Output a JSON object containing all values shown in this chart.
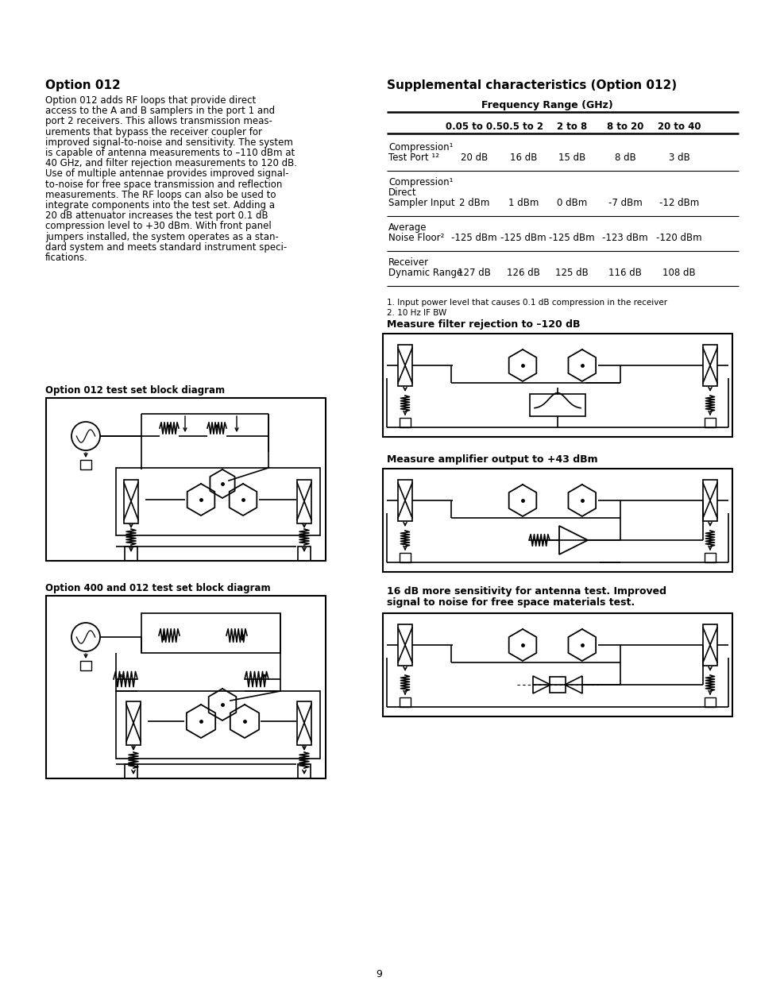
{
  "bg_color": "#ffffff",
  "page_number": "9",
  "left_title": "Option 012",
  "left_body_lines": [
    "Option 012 adds RF loops that provide direct",
    "access to the A and B samplers in the port 1 and",
    "port 2 receivers. This allows transmission meas-",
    "urements that bypass the receiver coupler for",
    "improved signal-to-noise and sensitivity. The system",
    "is capable of antenna measurements to –110 dBm at",
    "40 GHz, and filter rejection measurements to 120 dB.",
    "Use of multiple antennae provides improved signal-",
    "to-noise for free space transmission and reflection",
    "measurements. The RF loops can also be used to",
    "integrate components into the test set. Adding a",
    "20 dB attenuator increases the test port 0.1 dB",
    "compression level to +30 dBm. With front panel",
    "jumpers installed, the system operates as a stan-",
    "dard system and meets standard instrument speci-",
    "fications."
  ],
  "left_diag1_title": "Option 012 test set block diagram",
  "left_diag2_title": "Option 400 and 012 test set block diagram",
  "right_title": "Supplemental characteristics (Option 012)",
  "table_header_row1": "Frequency Range (GHz)",
  "table_col_headers": [
    "0.05 to 0.5",
    "0.5 to 2",
    "2 to 8",
    "8 to 20",
    "20 to 40"
  ],
  "table_rows": [
    {
      "label_lines": [
        "Compression¹",
        "Test Port ¹²"
      ],
      "values": [
        "20 dB",
        "16 dB",
        "15 dB",
        "8 dB",
        "3 dB"
      ]
    },
    {
      "label_lines": [
        "Compression¹",
        "Direct",
        "Sampler Input"
      ],
      "values": [
        "2 dBm",
        "1 dBm",
        "0 dBm",
        "-7 dBm",
        "-12 dBm"
      ]
    },
    {
      "label_lines": [
        "Average",
        "Noise Floor²"
      ],
      "values": [
        "-125 dBm",
        "-125 dBm",
        "-125 dBm",
        "-123 dBm",
        "-120 dBm"
      ]
    },
    {
      "label_lines": [
        "Receiver",
        "Dynamic Range"
      ],
      "values": [
        "127 dB",
        "126 dB",
        "125 dB",
        "116 dB",
        "108 dB"
      ]
    }
  ],
  "footnotes": [
    "1. Input power level that causes 0.1 dB compression in the receiver",
    "2. 10 Hz IF BW"
  ],
  "right_diag1_title": "Measure filter rejection to –120 dB",
  "right_diag2_title": "Measure amplifier output to +43 dBm",
  "right_diag3_title_lines": [
    "16 dB more sensitivity for antenna test. Improved",
    "signal to noise for free space materials test."
  ]
}
